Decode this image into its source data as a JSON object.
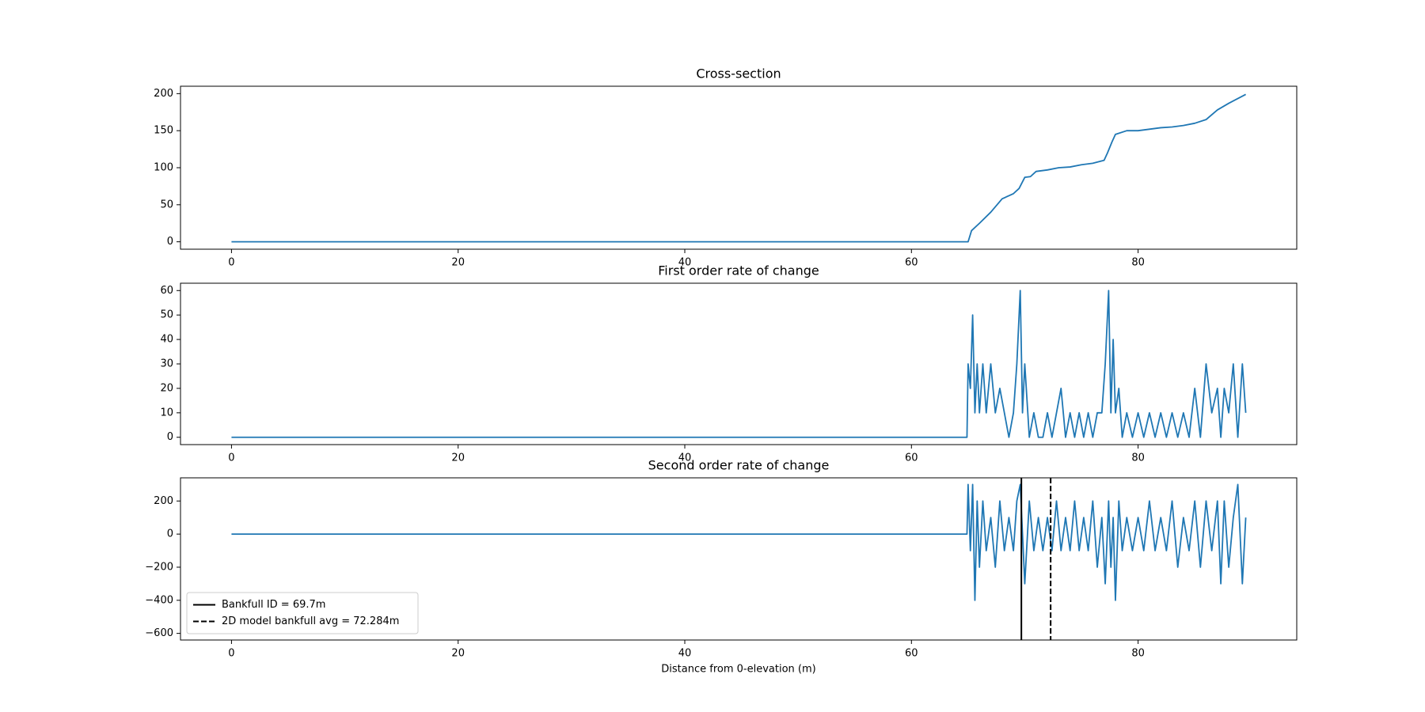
{
  "chart_data": [
    {
      "type": "line",
      "title": "Cross-section",
      "x": [
        0,
        64.9,
        65,
        65.3,
        66,
        67,
        68,
        69,
        69.5,
        70,
        70.5,
        71,
        72,
        73,
        74,
        75,
        76,
        77,
        77.3,
        77.7,
        78,
        79,
        80,
        81,
        82,
        83,
        84,
        85,
        86,
        87,
        88,
        89,
        89.5
      ],
      "values": [
        0,
        0,
        0,
        15,
        25,
        40,
        58,
        65,
        72,
        87,
        88,
        95,
        97,
        100,
        101,
        104,
        106,
        110,
        120,
        135,
        145,
        150,
        150,
        152,
        154,
        155,
        157,
        160,
        165,
        178,
        187,
        195,
        199
      ],
      "color": "#1f77b4",
      "xlim": [
        -4.5,
        94
      ],
      "xticks": [
        0,
        20,
        40,
        60,
        80
      ],
      "ylim": [
        -10,
        210
      ],
      "yticks": [
        0,
        50,
        100,
        150,
        200
      ]
    },
    {
      "type": "line",
      "title": "First order rate of change",
      "x": [
        0,
        64.9,
        65,
        65.2,
        65.4,
        65.6,
        65.8,
        66,
        66.3,
        66.6,
        67,
        67.4,
        67.8,
        68.2,
        68.6,
        69,
        69.3,
        69.6,
        69.8,
        70,
        70.4,
        70.8,
        71.2,
        71.6,
        72,
        72.4,
        72.8,
        73.2,
        73.6,
        74,
        74.4,
        74.8,
        75.2,
        75.6,
        76,
        76.4,
        76.8,
        77.1,
        77.4,
        77.6,
        77.8,
        78,
        78.3,
        78.6,
        79,
        79.5,
        80,
        80.5,
        81,
        81.5,
        82,
        82.5,
        83,
        83.5,
        84,
        84.5,
        85,
        85.5,
        86,
        86.5,
        87,
        87.3,
        87.6,
        88,
        88.4,
        88.8,
        89.2,
        89.5
      ],
      "values": [
        0,
        0,
        30,
        20,
        50,
        10,
        30,
        10,
        30,
        10,
        30,
        10,
        20,
        10,
        0,
        10,
        30,
        60,
        10,
        30,
        0,
        10,
        0,
        0,
        10,
        0,
        10,
        20,
        0,
        10,
        0,
        10,
        0,
        10,
        0,
        10,
        10,
        30,
        60,
        10,
        40,
        10,
        20,
        0,
        10,
        0,
        10,
        0,
        10,
        0,
        10,
        0,
        10,
        0,
        10,
        0,
        20,
        0,
        30,
        10,
        20,
        0,
        20,
        10,
        30,
        0,
        30,
        10
      ],
      "color": "#1f77b4",
      "xlim": [
        -4.5,
        94
      ],
      "xticks": [
        0,
        20,
        40,
        60,
        80
      ],
      "ylim": [
        -3,
        63
      ],
      "yticks": [
        0,
        10,
        20,
        30,
        40,
        50,
        60
      ]
    },
    {
      "type": "line",
      "title": "Second order rate of change",
      "x_label": "Distance from 0-elevation (m)",
      "x": [
        0,
        64.9,
        65,
        65.2,
        65.4,
        65.6,
        65.8,
        66,
        66.3,
        66.6,
        67,
        67.4,
        67.8,
        68.2,
        68.6,
        69,
        69.3,
        69.6,
        70,
        70.4,
        70.8,
        71.2,
        71.6,
        72,
        72.4,
        72.8,
        73.2,
        73.6,
        74,
        74.4,
        74.8,
        75.2,
        75.6,
        76,
        76.4,
        76.8,
        77.1,
        77.4,
        77.6,
        77.8,
        78,
        78.3,
        78.6,
        79,
        79.5,
        80,
        80.5,
        81,
        81.5,
        82,
        82.5,
        83,
        83.5,
        84,
        84.5,
        85,
        85.5,
        86,
        86.5,
        87,
        87.3,
        87.6,
        88,
        88.4,
        88.8,
        89.2,
        89.5
      ],
      "values": [
        0,
        0,
        300,
        -100,
        300,
        -400,
        200,
        -200,
        200,
        -100,
        100,
        -200,
        200,
        -100,
        100,
        -100,
        200,
        300,
        -300,
        200,
        -100,
        100,
        -100,
        100,
        -100,
        200,
        -100,
        100,
        -100,
        200,
        -100,
        100,
        -100,
        200,
        -200,
        100,
        -300,
        200,
        -200,
        100,
        -400,
        200,
        -100,
        100,
        -100,
        100,
        -100,
        200,
        -100,
        100,
        -100,
        200,
        -200,
        100,
        -100,
        200,
        -200,
        200,
        -100,
        200,
        -300,
        200,
        -200,
        100,
        300,
        -300,
        100
      ],
      "color": "#1f77b4",
      "xlim": [
        -4.5,
        94
      ],
      "xticks": [
        0,
        20,
        40,
        60,
        80
      ],
      "ylim": [
        -640,
        340
      ],
      "yticks": [
        {
          "value": -600,
          "label": "−600"
        },
        {
          "value": -400,
          "label": "−400"
        },
        {
          "value": -200,
          "label": "−200"
        },
        0,
        200
      ],
      "vlines": [
        {
          "name": "Bankfull ID = 69.7m",
          "x": 69.7,
          "color": "#000000",
          "dashed": false
        },
        {
          "name": "2D model bankfull avg = 72.284m",
          "x": 72.284,
          "color": "#000000",
          "dashed": true
        }
      ],
      "legend": "lower left"
    }
  ]
}
